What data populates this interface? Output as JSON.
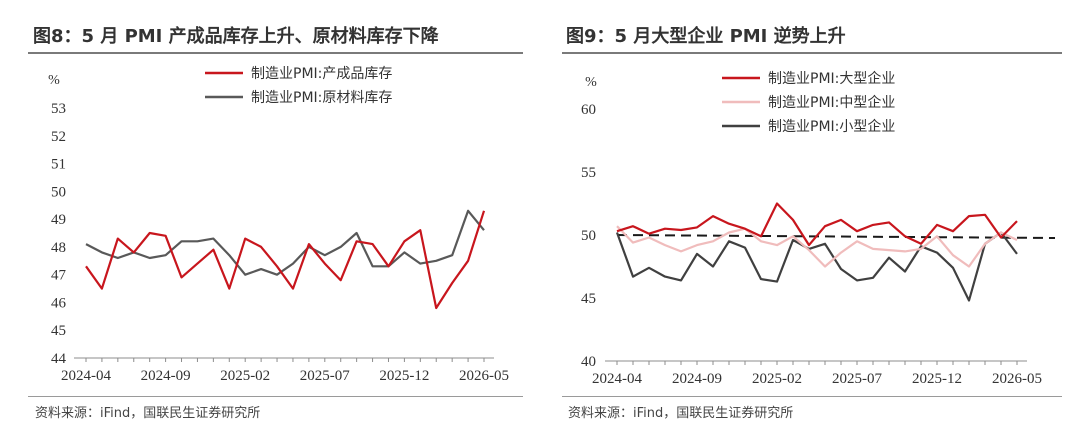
{
  "left": {
    "title": "图8：5 月 PMI 产成品库存上升、原材料库存下降",
    "source": "资料来源：iFind，国联民生证券研究所",
    "chart_data": {
      "type": "line",
      "ylabel": "%",
      "ylim": [
        44,
        53
      ],
      "yticks": [
        44,
        45,
        46,
        47,
        48,
        49,
        50,
        51,
        52,
        53
      ],
      "xticks": [
        "2024-04",
        "2024-09",
        "2025-02",
        "2025-07",
        "2025-12",
        "2026-05"
      ],
      "x": [
        "2024-04",
        "2024-05",
        "2024-06",
        "2024-07",
        "2024-08",
        "2024-09",
        "2024-10",
        "2024-11",
        "2024-12",
        "2025-01",
        "2025-02",
        "2025-03",
        "2025-04",
        "2025-05",
        "2025-06",
        "2025-07",
        "2025-08",
        "2025-09",
        "2025-10",
        "2025-11",
        "2025-12",
        "2026-01",
        "2026-02",
        "2026-03",
        "2026-04",
        "2026-05"
      ],
      "legend_position": "top-center",
      "series": [
        {
          "name": "制造业PMI:产成品库存",
          "color": "#c8161d",
          "values": [
            47.3,
            46.5,
            48.3,
            47.8,
            48.5,
            48.4,
            46.9,
            47.4,
            47.9,
            46.5,
            48.3,
            48.0,
            47.3,
            46.5,
            48.1,
            47.4,
            46.8,
            48.2,
            48.1,
            47.3,
            48.2,
            48.6,
            45.8,
            46.7,
            47.5,
            49.3
          ]
        },
        {
          "name": "制造业PMI:原材料库存",
          "color": "#595959",
          "values": [
            48.1,
            47.8,
            47.6,
            47.8,
            47.6,
            47.7,
            48.2,
            48.2,
            48.3,
            47.7,
            47.0,
            47.2,
            47.0,
            47.4,
            48.0,
            47.7,
            48.0,
            48.5,
            47.3,
            47.3,
            47.8,
            47.4,
            47.5,
            47.7,
            49.3,
            48.6
          ]
        }
      ]
    }
  },
  "right": {
    "title": "图9：5 月大型企业 PMI 逆势上升",
    "source": "资料来源：iFind，国联民生证券研究所",
    "chart_data": {
      "type": "line",
      "ylabel": "%",
      "ylim": [
        40,
        60
      ],
      "yticks": [
        40,
        45,
        50,
        55,
        60
      ],
      "xticks": [
        "2024-04",
        "2024-09",
        "2025-02",
        "2025-07",
        "2025-12",
        "2026-05"
      ],
      "x": [
        "2024-04",
        "2024-05",
        "2024-06",
        "2024-07",
        "2024-08",
        "2024-09",
        "2024-10",
        "2024-11",
        "2024-12",
        "2025-01",
        "2025-02",
        "2025-03",
        "2025-04",
        "2025-05",
        "2025-06",
        "2025-07",
        "2025-08",
        "2025-09",
        "2025-10",
        "2025-11",
        "2025-12",
        "2026-01",
        "2026-02",
        "2026-03",
        "2026-04",
        "2026-05"
      ],
      "reference_line": {
        "value": 50,
        "style": "dashed",
        "color": "#1a1a1a"
      },
      "legend_position": "top-center",
      "series": [
        {
          "name": "制造业PMI:大型企业",
          "color": "#c8161d",
          "values": [
            50.3,
            50.7,
            50.1,
            50.5,
            50.4,
            50.6,
            51.5,
            50.9,
            50.5,
            49.9,
            52.5,
            51.2,
            49.2,
            50.7,
            51.2,
            50.3,
            50.8,
            51.0,
            49.9,
            49.3,
            50.8,
            50.3,
            51.5,
            51.6,
            49.8,
            51.1
          ]
        },
        {
          "name": "制造业PMI:中型企业",
          "color": "#f0bcbc",
          "values": [
            50.7,
            49.4,
            49.8,
            49.2,
            48.7,
            49.2,
            49.5,
            50.2,
            50.5,
            49.5,
            49.2,
            49.9,
            48.8,
            47.5,
            48.6,
            49.5,
            48.9,
            48.8,
            48.7,
            48.9,
            49.9,
            48.4,
            47.5,
            49.3,
            50.2,
            49.6
          ]
        },
        {
          "name": "制造业PMI:小型企业",
          "color": "#404040",
          "values": [
            50.2,
            46.7,
            47.4,
            46.7,
            46.4,
            48.5,
            47.5,
            49.5,
            49.0,
            46.5,
            46.3,
            49.6,
            48.9,
            49.3,
            47.3,
            46.4,
            46.6,
            48.2,
            47.1,
            49.1,
            48.6,
            47.4,
            44.8,
            49.3,
            50.2,
            48.5
          ]
        }
      ]
    }
  }
}
